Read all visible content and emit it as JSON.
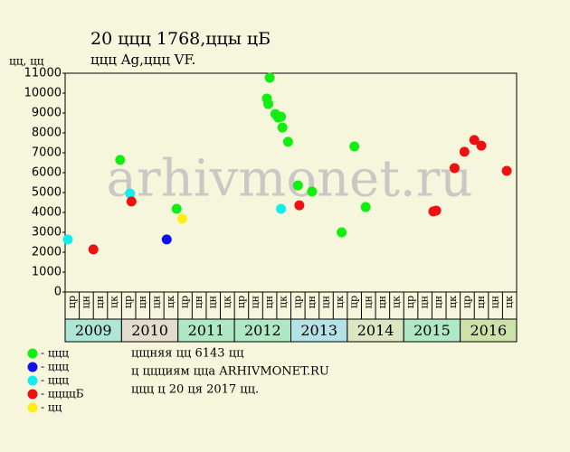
{
  "chart_data": {
    "type": "scatter",
    "title": "20 ццц 1768,ццы цБ",
    "subtitle": "ццц Ag,ццц VF.",
    "y_label": "цц, цц",
    "watermark": "arhivmonet.ru",
    "xlim": [
      0,
      32
    ],
    "ylim": [
      0,
      11000
    ],
    "yticks": [
      0,
      1000,
      2000,
      3000,
      4000,
      5000,
      6000,
      7000,
      8000,
      9000,
      10000,
      11000
    ],
    "categories": [
      "цр",
      "цн",
      "цн",
      "цк",
      "цр",
      "цн",
      "цн",
      "цк",
      "цр",
      "цн",
      "цн",
      "цк",
      "цр",
      "цн",
      "цн",
      "цк",
      "цр",
      "цн",
      "цн",
      "цк",
      "цр",
      "цн",
      "цн",
      "цк",
      "цр",
      "цн",
      "цн",
      "цк",
      "цр",
      "цн",
      "цн",
      "цк"
    ],
    "years": [
      "2009",
      "2010",
      "2011",
      "2012",
      "2013",
      "2014",
      "2015",
      "2016"
    ],
    "year_colors": [
      "#aee6d6",
      "#e2dccc",
      "#aee8c4",
      "#aee8c4",
      "#b4e2e6",
      "#dde6c2",
      "#aee8c4",
      "#cde2a8"
    ],
    "series": [
      {
        "name": "- ццц",
        "color": "#11ee11",
        "x": [
          3.9,
          7.9,
          14.5,
          14.3,
          14.4,
          14.9,
          15.1,
          15.3,
          15.4,
          15.8,
          16.5,
          17.5,
          19.6,
          20.5,
          21.3
        ],
        "values": [
          6640,
          4180,
          10770,
          9730,
          9450,
          8950,
          8770,
          8820,
          8270,
          7550,
          5360,
          5050,
          3000,
          7320,
          4270
        ]
      },
      {
        "name": "- ццц",
        "color": "#1111ee",
        "x": [
          7.2
        ],
        "values": [
          2640
        ]
      },
      {
        "name": "- ццц",
        "color": "#11eeee",
        "x": [
          0.19,
          4.6,
          15.3
        ],
        "values": [
          2640,
          4950,
          4180
        ]
      },
      {
        "name": "- ццццБ",
        "color": "#ee1111",
        "x": [
          2.0,
          4.7,
          16.6,
          26.1,
          26.3,
          27.6,
          28.3,
          29.0,
          29.5,
          31.3
        ],
        "values": [
          2140,
          4550,
          4360,
          4050,
          4090,
          6230,
          7050,
          7640,
          7360,
          6090
        ]
      },
      {
        "name": "- цц",
        "color": "#ffee11",
        "x": [
          8.3
        ],
        "values": [
          3680
        ]
      }
    ],
    "notes": [
      "цщняя цц 6143 цц",
      "ц ццциям цца ARHIVMONET.RU",
      "ццц ц 20 ця 2017 цц."
    ]
  }
}
